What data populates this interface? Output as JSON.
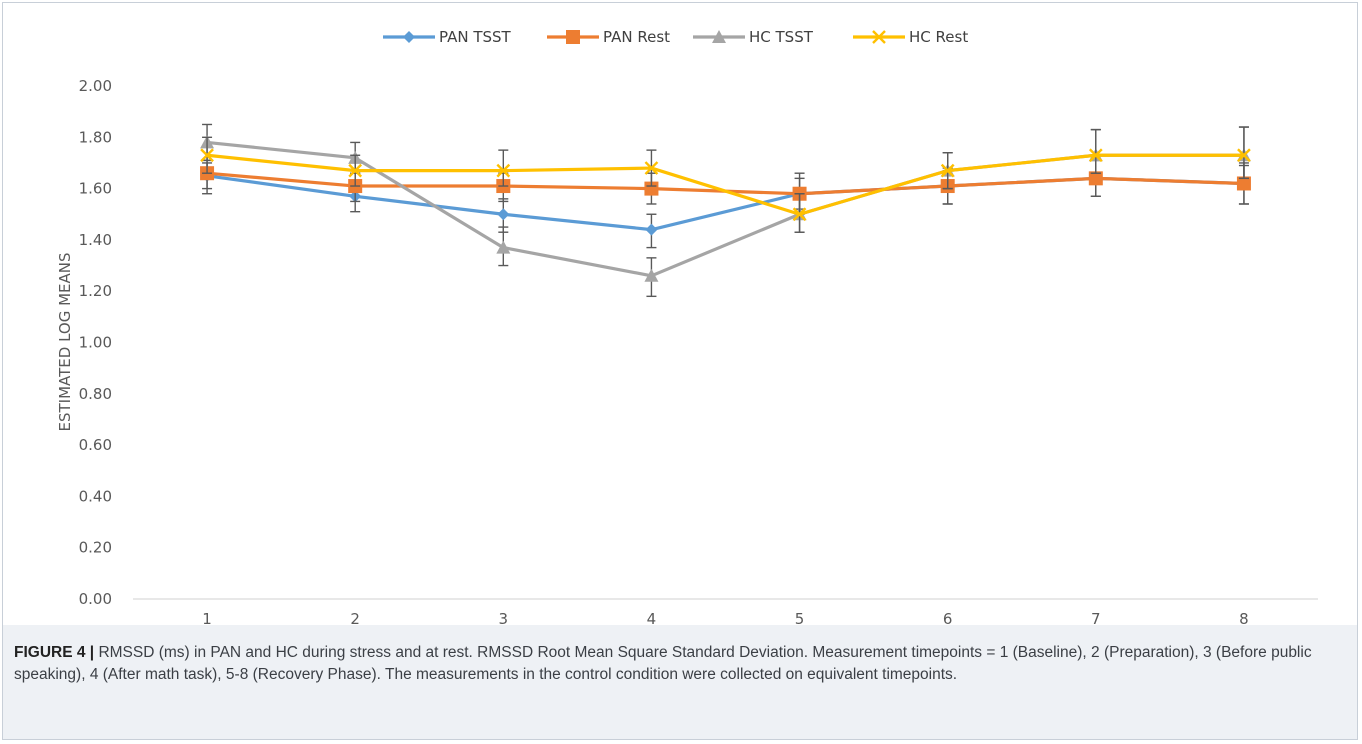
{
  "caption": {
    "label": "FIGURE 4 |",
    "text": "RMSSD (ms) in PAN and HC during stress and at rest. RMSSD Root Mean Square Standard Deviation. Measurement timepoints = 1 (Baseline), 2 (Preparation), 3 (Before public speaking), 4 (After math task), 5-8 (Recovery Phase). The measurements in the control condition were collected on equivalent timepoints."
  },
  "chart_data": {
    "type": "line",
    "title": "",
    "xlabel": "",
    "ylabel": "ESTIMATED LOG MEANS",
    "categories": [
      "1",
      "2",
      "3",
      "4",
      "5",
      "6",
      "7",
      "8"
    ],
    "ylim": [
      0,
      2
    ],
    "yticks": [
      "0.00",
      "0.20",
      "0.40",
      "0.60",
      "0.80",
      "1.00",
      "1.20",
      "1.40",
      "1.60",
      "1.80",
      "2.00"
    ],
    "grid": false,
    "legend_position": "top",
    "series": [
      {
        "name": "PAN TSST",
        "color": "#5b9bd5",
        "marker": "diamond",
        "values": [
          1.65,
          1.57,
          1.5,
          1.44,
          1.58,
          1.61,
          1.64,
          1.62
        ],
        "err_low": [
          0.07,
          0.06,
          0.07,
          0.07,
          0.08,
          0.07,
          0.07,
          0.08
        ],
        "err_high": [
          0.05,
          0.06,
          0.06,
          0.06,
          0.08,
          0.07,
          0.07,
          0.08
        ]
      },
      {
        "name": "PAN Rest",
        "color": "#ed7d31",
        "marker": "square",
        "values": [
          1.66,
          1.61,
          1.61,
          1.6,
          1.58,
          1.61,
          1.64,
          1.62
        ],
        "err_low": [
          0.06,
          0.06,
          0.06,
          0.06,
          0.06,
          0.07,
          0.07,
          0.08
        ],
        "err_high": [
          0.05,
          0.05,
          0.05,
          0.06,
          0.06,
          0.06,
          0.07,
          0.07
        ]
      },
      {
        "name": "HC TSST",
        "color": "#a5a5a5",
        "marker": "triangle",
        "values": [
          1.78,
          1.72,
          1.37,
          1.26,
          1.5,
          1.67,
          1.73,
          1.73
        ],
        "err_low": [
          0.07,
          0.06,
          0.07,
          0.08,
          0.07,
          0.07,
          0.07,
          0.09
        ],
        "err_high": [
          0.07,
          0.06,
          0.08,
          0.07,
          0.08,
          0.07,
          0.1,
          0.11
        ]
      },
      {
        "name": "HC Rest",
        "color": "#ffc000",
        "marker": "x",
        "values": [
          1.73,
          1.67,
          1.67,
          1.68,
          1.5,
          1.67,
          1.73,
          1.73
        ],
        "err_low": [
          0.07,
          0.06,
          0.06,
          0.07,
          0.07,
          0.07,
          0.07,
          0.09
        ],
        "err_high": [
          0.07,
          0.06,
          0.08,
          0.07,
          0.08,
          0.07,
          0.1,
          0.11
        ]
      }
    ]
  }
}
